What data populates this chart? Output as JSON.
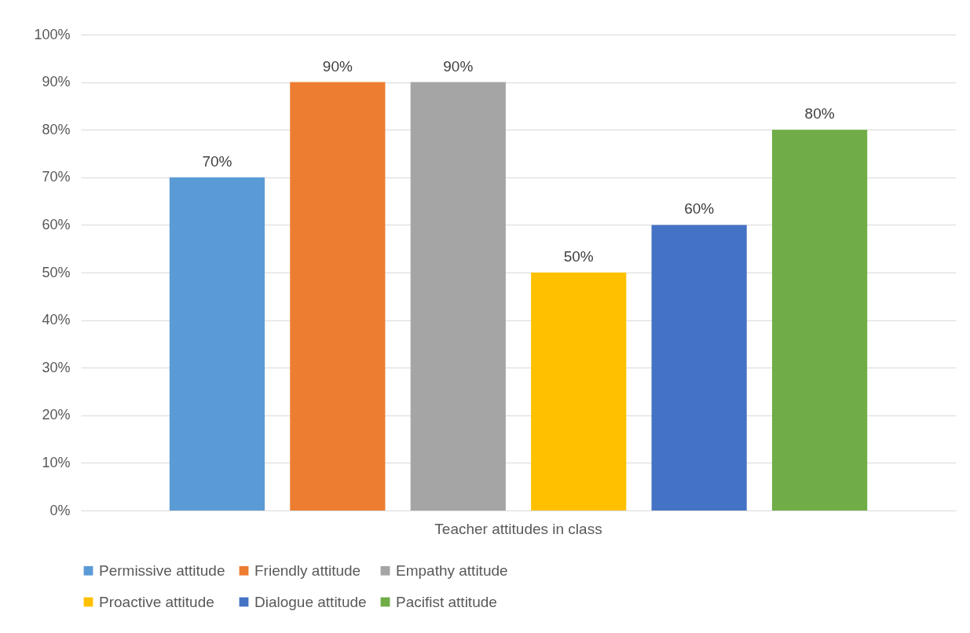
{
  "chart_data": {
    "type": "bar",
    "categories": [
      "Teacher attitudes in class"
    ],
    "series": [
      {
        "name": "Permissive attitude",
        "color": "#5b9bd5",
        "values": [
          70
        ],
        "value_labels": [
          "70%"
        ]
      },
      {
        "name": "Friendly attitude",
        "color": "#ed7d31",
        "values": [
          90
        ],
        "value_labels": [
          "90%"
        ]
      },
      {
        "name": "Empathy attitude",
        "color": "#a5a5a5",
        "values": [
          90
        ],
        "value_labels": [
          "90%"
        ]
      },
      {
        "name": "Proactive attitude",
        "color": "#ffc000",
        "values": [
          50
        ],
        "value_labels": [
          "50%"
        ]
      },
      {
        "name": "Dialogue attitude",
        "color": "#4472c4",
        "values": [
          60
        ],
        "value_labels": [
          "60%"
        ]
      },
      {
        "name": "Pacifist attitude",
        "color": "#70ad47",
        "values": [
          80
        ],
        "value_labels": [
          "80%"
        ]
      }
    ],
    "ylim": [
      0,
      100
    ],
    "yticks": [
      {
        "value": 0,
        "label": "0%"
      },
      {
        "value": 10,
        "label": "10%"
      },
      {
        "value": 20,
        "label": "20%"
      },
      {
        "value": 30,
        "label": "30%"
      },
      {
        "value": 40,
        "label": "40%"
      },
      {
        "value": 50,
        "label": "50%"
      },
      {
        "value": 60,
        "label": "60%"
      },
      {
        "value": 70,
        "label": "70%"
      },
      {
        "value": 80,
        "label": "80%"
      },
      {
        "value": 90,
        "label": "90%"
      },
      {
        "value": 100,
        "label": "100%"
      }
    ],
    "grid": "y",
    "legend": "bottom"
  }
}
